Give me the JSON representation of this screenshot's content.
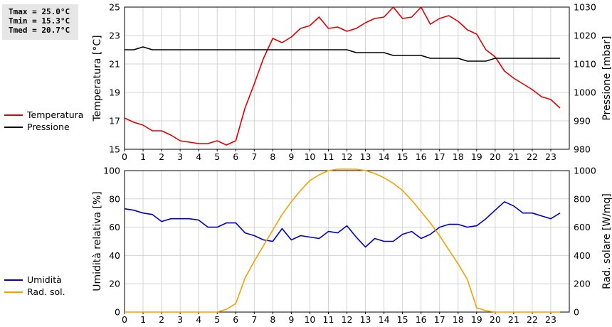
{
  "stats": {
    "tmax": "Tmax = 25.0°C",
    "tmin": "Tmin = 15.3°C",
    "tmed": "Tmed = 20.7°C"
  },
  "legend_top": [
    {
      "label": "Temperatura",
      "color": "#e00000"
    },
    {
      "label": "Pressione",
      "color": "#000000"
    }
  ],
  "legend_bottom": [
    {
      "label": "Umidità",
      "color": "#0000c8"
    },
    {
      "label": "Rad. sol.",
      "color": "#f5a000"
    }
  ],
  "chart_data": [
    {
      "type": "line",
      "xlabel": "",
      "ylabel": "Temperatura [°C]",
      "y2label": "Pressione [mbar]",
      "xlim": [
        0,
        24
      ],
      "xticks": [
        0,
        1,
        2,
        3,
        4,
        5,
        6,
        7,
        8,
        9,
        10,
        11,
        12,
        13,
        14,
        15,
        16,
        17,
        18,
        19,
        20,
        21,
        22,
        23
      ],
      "ylim": [
        15,
        25
      ],
      "yticks": [
        15,
        17,
        19,
        21,
        23,
        25
      ],
      "y2lim": [
        980,
        1030
      ],
      "y2ticks": [
        980,
        990,
        1000,
        1010,
        1020,
        1030
      ],
      "grid": true,
      "series": [
        {
          "name": "Temperatura",
          "color": "#e00000",
          "axis": "left",
          "x": [
            0,
            0.5,
            1,
            1.5,
            2,
            2.5,
            3,
            3.5,
            4,
            4.5,
            5,
            5.5,
            6,
            6.5,
            7,
            7.5,
            8,
            8.5,
            9,
            9.5,
            10,
            10.5,
            11,
            11.5,
            12,
            12.5,
            13,
            13.5,
            14,
            14.5,
            15,
            15.5,
            16,
            16.5,
            17,
            17.5,
            18,
            18.5,
            19,
            19.5,
            20,
            20.5,
            21,
            21.5,
            22,
            22.5,
            23,
            23.5
          ],
          "y": [
            17.2,
            16.9,
            16.7,
            16.3,
            16.3,
            16.0,
            15.6,
            15.5,
            15.4,
            15.4,
            15.6,
            15.3,
            15.6,
            17.9,
            19.6,
            21.4,
            22.8,
            22.5,
            22.9,
            23.5,
            23.7,
            24.3,
            23.5,
            23.6,
            23.3,
            23.5,
            23.9,
            24.2,
            24.3,
            25.0,
            24.2,
            24.3,
            25.0,
            23.8,
            24.2,
            24.4,
            24.0,
            23.4,
            23.1,
            22.0,
            21.5,
            20.5,
            20.0,
            19.6,
            19.2,
            18.7,
            18.5,
            17.9
          ]
        },
        {
          "name": "Pressione",
          "color": "#000000",
          "axis": "right",
          "x": [
            0,
            0.5,
            1,
            1.5,
            2,
            2.5,
            3,
            3.5,
            4,
            4.5,
            5,
            5.5,
            6,
            6.5,
            7,
            7.5,
            8,
            8.5,
            9,
            9.5,
            10,
            10.5,
            11,
            11.5,
            12,
            12.5,
            13,
            13.5,
            14,
            14.5,
            15,
            15.5,
            16,
            16.5,
            17,
            17.5,
            18,
            18.5,
            19,
            19.5,
            20,
            20.5,
            21,
            21.5,
            22,
            22.5,
            23,
            23.5
          ],
          "y": [
            1015,
            1015,
            1016,
            1015,
            1015,
            1015,
            1015,
            1015,
            1015,
            1015,
            1015,
            1015,
            1015,
            1015,
            1015,
            1015,
            1015,
            1015,
            1015,
            1015,
            1015,
            1015,
            1015,
            1015,
            1015,
            1014,
            1014,
            1014,
            1014,
            1013,
            1013,
            1013,
            1013,
            1012,
            1012,
            1012,
            1012,
            1011,
            1011,
            1011,
            1012,
            1012,
            1012,
            1012,
            1012,
            1012,
            1012,
            1012
          ]
        }
      ]
    },
    {
      "type": "line",
      "xlabel": "",
      "ylabel": "Umidità relativa [%]",
      "y2label": "Rad. solare [W/mq]",
      "xlim": [
        0,
        24
      ],
      "xticks": [
        0,
        1,
        2,
        3,
        4,
        5,
        6,
        7,
        8,
        9,
        10,
        11,
        12,
        13,
        14,
        15,
        16,
        17,
        18,
        19,
        20,
        21,
        22,
        23
      ],
      "ylim": [
        0,
        100
      ],
      "yticks": [
        0,
        20,
        40,
        60,
        80,
        100
      ],
      "y2lim": [
        0,
        1000
      ],
      "y2ticks": [
        0,
        200,
        400,
        600,
        800,
        1000
      ],
      "grid": true,
      "series": [
        {
          "name": "Umidità",
          "color": "#0000c8",
          "axis": "left",
          "x": [
            0,
            0.5,
            1,
            1.5,
            2,
            2.5,
            3,
            3.5,
            4,
            4.5,
            5,
            5.5,
            6,
            6.5,
            7,
            7.5,
            8,
            8.5,
            9,
            9.5,
            10,
            10.5,
            11,
            11.5,
            12,
            12.5,
            13,
            13.5,
            14,
            14.5,
            15,
            15.5,
            16,
            16.5,
            17,
            17.5,
            18,
            18.5,
            19,
            19.5,
            20,
            20.5,
            21,
            21.5,
            22,
            22.5,
            23,
            23.5
          ],
          "y": [
            73,
            72,
            70,
            69,
            64,
            66,
            66,
            66,
            65,
            60,
            60,
            63,
            63,
            56,
            54,
            51,
            50,
            59,
            51,
            54,
            53,
            52,
            57,
            56,
            61,
            53,
            46,
            52,
            50,
            50,
            55,
            57,
            52,
            55,
            60,
            62,
            62,
            60,
            61,
            66,
            72,
            78,
            75,
            70,
            70,
            68,
            66,
            70
          ]
        },
        {
          "name": "Rad. sol.",
          "color": "#f5a000",
          "axis": "right",
          "x": [
            0,
            0.5,
            1,
            1.5,
            2,
            2.5,
            3,
            3.5,
            4,
            4.5,
            5,
            5.5,
            6,
            6.5,
            7,
            7.5,
            8,
            8.5,
            9,
            9.5,
            10,
            10.5,
            11,
            11.5,
            12,
            12.5,
            13,
            13.5,
            14,
            14.5,
            15,
            15.5,
            16,
            16.5,
            17,
            17.5,
            18,
            18.5,
            19,
            19.5,
            20,
            20.5,
            21,
            21.5,
            22,
            22.5,
            23,
            23.5
          ],
          "y": [
            0,
            0,
            0,
            0,
            0,
            0,
            0,
            0,
            0,
            0,
            0,
            20,
            60,
            240,
            360,
            470,
            580,
            690,
            780,
            860,
            930,
            970,
            1000,
            1010,
            1010,
            1010,
            1000,
            980,
            950,
            910,
            860,
            790,
            710,
            630,
            540,
            440,
            340,
            230,
            30,
            10,
            0,
            0,
            0,
            0,
            0,
            0,
            0,
            0
          ]
        }
      ]
    }
  ]
}
